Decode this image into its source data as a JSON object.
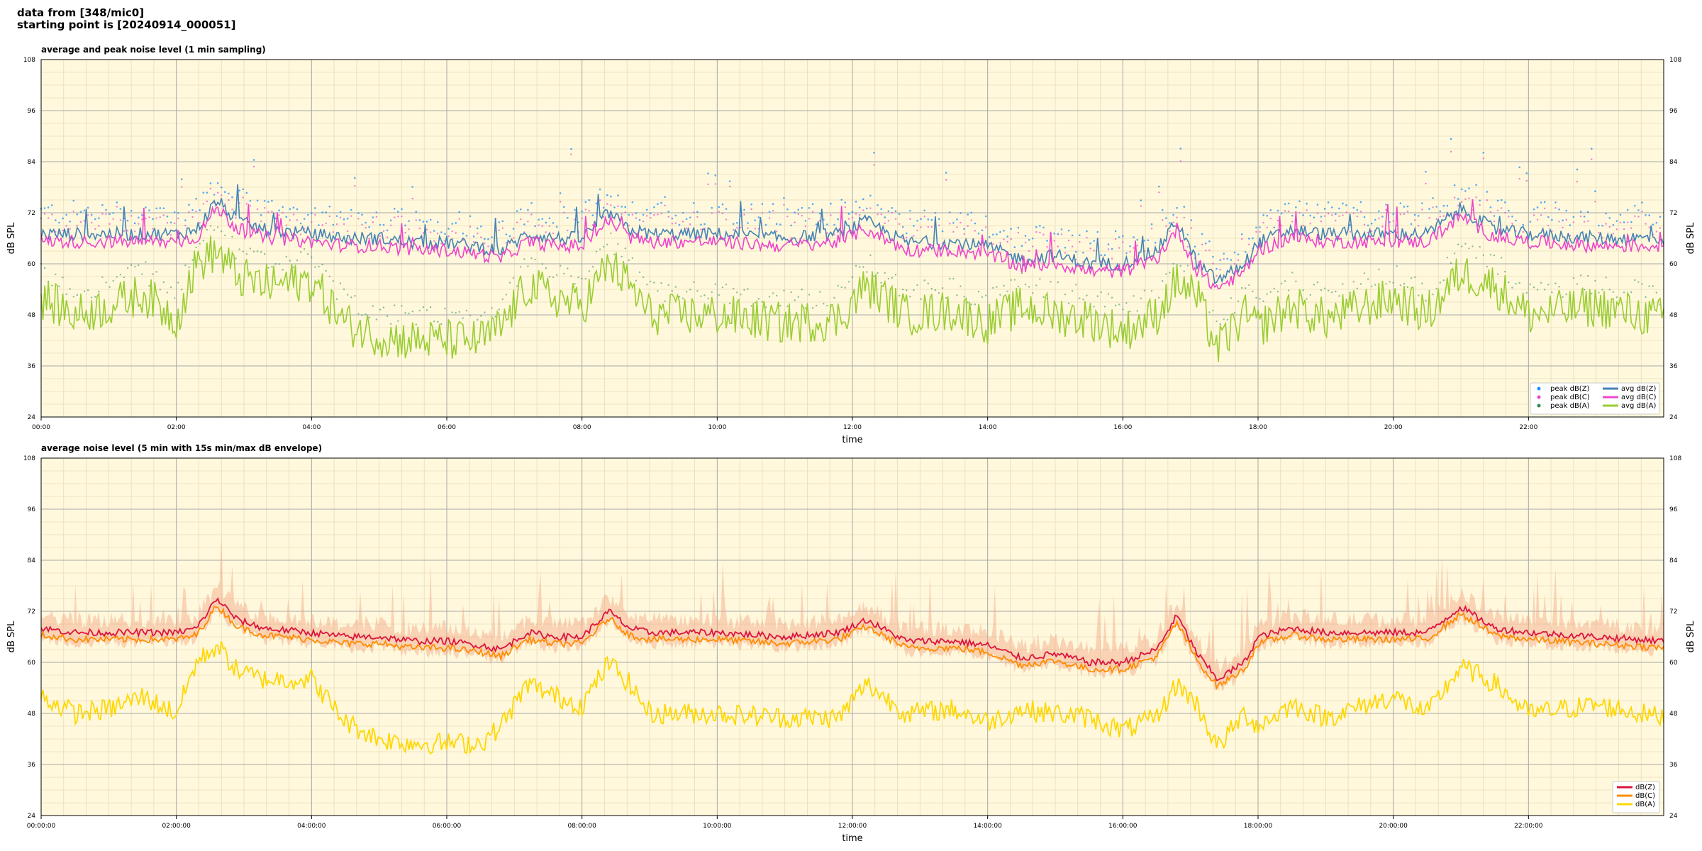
{
  "header": {
    "line1": "data from [348/mic0]",
    "line2": "starting point is [20240914_000051]"
  },
  "chart_data": [
    {
      "type": "line",
      "title": "average and peak noise level (1 min sampling)",
      "xlabel": "time",
      "ylabel": "dB SPL",
      "ylabel_right": "dB SPL",
      "xlim_hours": [
        0,
        24
      ],
      "ylim": [
        24,
        108
      ],
      "yticks": [
        "24",
        "36",
        "48",
        "60",
        "72",
        "84",
        "96",
        "108"
      ],
      "xticks": [
        "00:00",
        "02:00",
        "04:00",
        "06:00",
        "08:00",
        "10:00",
        "12:00",
        "14:00",
        "16:00",
        "18:00",
        "20:00",
        "22:00"
      ],
      "grid": true,
      "background": "#fff8dc",
      "legend_position": "bottom-right",
      "legend": [
        "peak dB(Z)",
        "peak dB(C)",
        "peak dB(A)",
        "avg dB(Z)",
        "avg dB(C)",
        "avg dB(A)"
      ],
      "colors": {
        "z": "#4682b4",
        "c": "#ee44cc",
        "a": "#9acd32",
        "peak_z": "#1e90ff"
      },
      "series_profile": {
        "hours": [
          0,
          0.5,
          1,
          1.5,
          2,
          2.3,
          2.6,
          2.9,
          3.3,
          4,
          4.5,
          5,
          5.5,
          6,
          6.5,
          6.8,
          7.2,
          7.6,
          8,
          8.4,
          8.7,
          9,
          10,
          11,
          11.8,
          12.2,
          12.8,
          13.5,
          14,
          14.5,
          15,
          15.5,
          16,
          16.5,
          16.8,
          17.1,
          17.4,
          17.8,
          18,
          18.5,
          19,
          20,
          20.5,
          21,
          21.5,
          22,
          23,
          24
        ],
        "avg_dBZ": [
          67,
          67,
          67,
          67,
          67,
          68,
          75,
          70,
          68,
          67,
          66,
          66,
          65,
          65,
          64,
          63,
          67,
          66,
          66,
          72,
          68,
          67,
          67,
          66,
          67,
          70,
          65,
          65,
          64,
          61,
          62,
          60,
          60,
          63,
          70,
          60,
          56,
          60,
          65,
          68,
          67,
          67,
          67,
          73,
          68,
          67,
          66,
          66
        ],
        "avg_dBA": [
          52,
          48,
          50,
          53,
          47,
          60,
          63,
          57,
          55,
          56,
          46,
          43,
          42,
          42,
          42,
          45,
          55,
          52,
          50,
          60,
          55,
          48,
          48,
          46,
          47,
          55,
          48,
          49,
          46,
          50,
          48,
          47,
          44,
          48,
          56,
          52,
          40,
          48,
          45,
          50,
          47,
          52,
          48,
          58,
          55,
          48,
          50,
          47
        ]
      }
    },
    {
      "type": "line",
      "title": "average noise level (5 min with 15s min/max dB envelope)",
      "xlabel": "time",
      "ylabel": "dB SPL",
      "ylabel_right": "dB SPL",
      "xlim_hours": [
        0,
        24
      ],
      "ylim": [
        24,
        108
      ],
      "yticks": [
        "24",
        "36",
        "48",
        "60",
        "72",
        "84",
        "96",
        "108"
      ],
      "xticks": [
        "00:00:00",
        "02:00:00",
        "04:00:00",
        "06:00:00",
        "08:00:00",
        "10:00:00",
        "12:00:00",
        "14:00:00",
        "16:00:00",
        "18:00:00",
        "20:00:00",
        "22:00:00"
      ],
      "grid": true,
      "background": "#fff8dc",
      "legend_position": "bottom-right",
      "legend": [
        "dB(Z)",
        "dB(C)",
        "dB(A)"
      ],
      "colors": {
        "z": "#dc143c",
        "c": "#ff8c00",
        "a": "#ffd700",
        "envelope": "#f4a582"
      },
      "series_profile": {
        "hours": [
          0,
          0.5,
          1,
          1.5,
          2,
          2.3,
          2.6,
          2.9,
          3.3,
          4,
          4.5,
          5,
          5.5,
          6,
          6.5,
          6.8,
          7.2,
          7.6,
          8,
          8.4,
          8.7,
          9,
          10,
          11,
          11.8,
          12.2,
          12.8,
          13.5,
          14,
          14.5,
          15,
          15.5,
          16,
          16.5,
          16.8,
          17.1,
          17.4,
          17.8,
          18,
          18.5,
          19,
          20,
          20.5,
          21,
          21.5,
          22,
          23,
          24
        ],
        "dBZ": [
          68,
          67,
          67,
          67,
          67,
          68,
          75,
          70,
          68,
          67,
          66,
          66,
          65,
          65,
          64,
          63,
          67,
          66,
          66,
          72,
          68,
          67,
          67,
          66,
          67,
          70,
          65,
          65,
          64,
          61,
          62,
          60,
          60,
          63,
          71,
          62,
          56,
          60,
          66,
          68,
          67,
          67,
          67,
          73,
          68,
          67,
          66,
          65
        ],
        "dBA": [
          52,
          48,
          49,
          52,
          48,
          60,
          64,
          58,
          56,
          56,
          46,
          42,
          41,
          41,
          41,
          45,
          55,
          52,
          50,
          60,
          55,
          48,
          48,
          47,
          47,
          55,
          48,
          49,
          46,
          49,
          48,
          47,
          44,
          47,
          55,
          50,
          40,
          48,
          45,
          50,
          47,
          52,
          48,
          59,
          55,
          48,
          50,
          47
        ]
      }
    }
  ]
}
